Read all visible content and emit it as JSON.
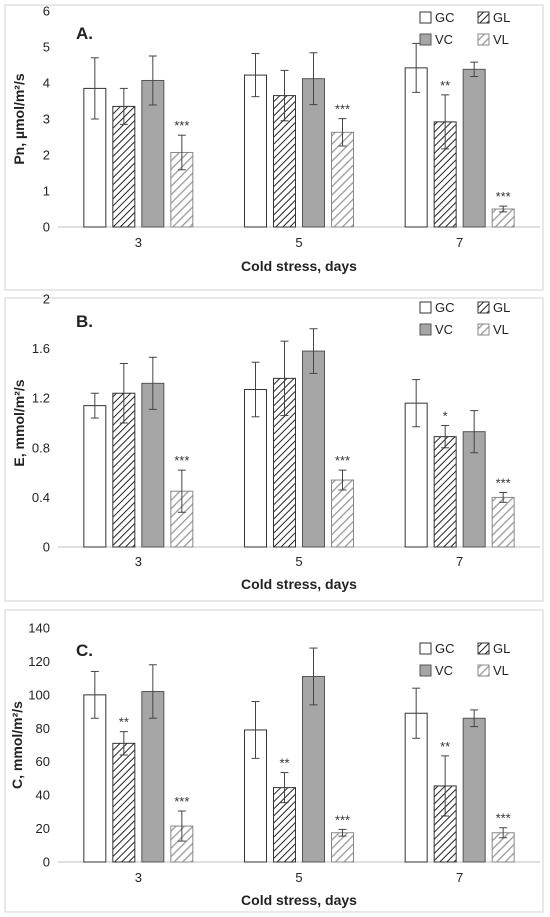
{
  "chart_data": [
    {
      "type": "bar",
      "panel_label": "A.",
      "title": "",
      "xlabel": "Cold stress, days",
      "ylabel": "Pn, µmol/m²/s",
      "categories": [
        "3",
        "5",
        "7"
      ],
      "ylim": [
        0,
        6
      ],
      "yticks": [
        "0",
        "1",
        "2",
        "3",
        "4",
        "5",
        "6"
      ],
      "legend_position": "top-right",
      "series": [
        {
          "name": "GC",
          "values": [
            3.85,
            4.22,
            4.42
          ],
          "errors": [
            0.85,
            0.6,
            0.68
          ],
          "sig": [
            "",
            "",
            ""
          ]
        },
        {
          "name": "GL",
          "values": [
            3.35,
            3.65,
            2.92
          ],
          "errors": [
            0.5,
            0.7,
            0.75
          ],
          "sig": [
            "",
            "",
            "**"
          ]
        },
        {
          "name": "VC",
          "values": [
            4.07,
            4.12,
            4.38
          ],
          "errors": [
            0.68,
            0.72,
            0.2
          ],
          "sig": [
            "",
            "",
            ""
          ]
        },
        {
          "name": "VL",
          "values": [
            2.07,
            2.63,
            0.5
          ],
          "errors": [
            0.48,
            0.38,
            0.08
          ],
          "sig": [
            "***",
            "***",
            "***"
          ]
        }
      ]
    },
    {
      "type": "bar",
      "panel_label": "B.",
      "title": "",
      "xlabel": "Cold stress, days",
      "ylabel": "E, mmol/m²/s",
      "categories": [
        "3",
        "5",
        "7"
      ],
      "ylim": [
        0,
        2
      ],
      "yticks": [
        "0",
        "0.4",
        "0.8",
        "1.2",
        "1.6",
        "2"
      ],
      "legend_position": "top-right",
      "series": [
        {
          "name": "GC",
          "values": [
            1.14,
            1.27,
            1.16
          ],
          "errors": [
            0.1,
            0.22,
            0.19
          ],
          "sig": [
            "",
            "",
            ""
          ]
        },
        {
          "name": "GL",
          "values": [
            1.24,
            1.36,
            0.89
          ],
          "errors": [
            0.24,
            0.3,
            0.09
          ],
          "sig": [
            "",
            "",
            "*"
          ]
        },
        {
          "name": "VC",
          "values": [
            1.32,
            1.58,
            0.93
          ],
          "errors": [
            0.21,
            0.18,
            0.17
          ],
          "sig": [
            "",
            "",
            ""
          ]
        },
        {
          "name": "VL",
          "values": [
            0.45,
            0.54,
            0.4
          ],
          "errors": [
            0.17,
            0.08,
            0.04
          ],
          "sig": [
            "***",
            "***",
            "***"
          ]
        }
      ]
    },
    {
      "type": "bar",
      "panel_label": "C.",
      "title": "",
      "xlabel": "Cold stress, days",
      "ylabel": "C, mmol/m²/s",
      "categories": [
        "3",
        "5",
        "7"
      ],
      "ylim": [
        0,
        140
      ],
      "yticks": [
        "0",
        "20",
        "40",
        "60",
        "80",
        "100",
        "120",
        "140"
      ],
      "legend_position": "top-right",
      "series": [
        {
          "name": "GC",
          "values": [
            100,
            79,
            89
          ],
          "errors": [
            14,
            17,
            15
          ],
          "sig": [
            "",
            "",
            ""
          ]
        },
        {
          "name": "GL",
          "values": [
            71,
            44.5,
            45.5
          ],
          "errors": [
            7,
            9,
            18
          ],
          "sig": [
            "**",
            "**",
            "**"
          ]
        },
        {
          "name": "VC",
          "values": [
            102,
            111,
            86
          ],
          "errors": [
            16,
            17,
            5
          ],
          "sig": [
            "",
            "",
            ""
          ]
        },
        {
          "name": "VL",
          "values": [
            21.5,
            17.5,
            17.5
          ],
          "errors": [
            9,
            2,
            3
          ],
          "sig": [
            "***",
            "***",
            "***"
          ]
        }
      ]
    }
  ]
}
